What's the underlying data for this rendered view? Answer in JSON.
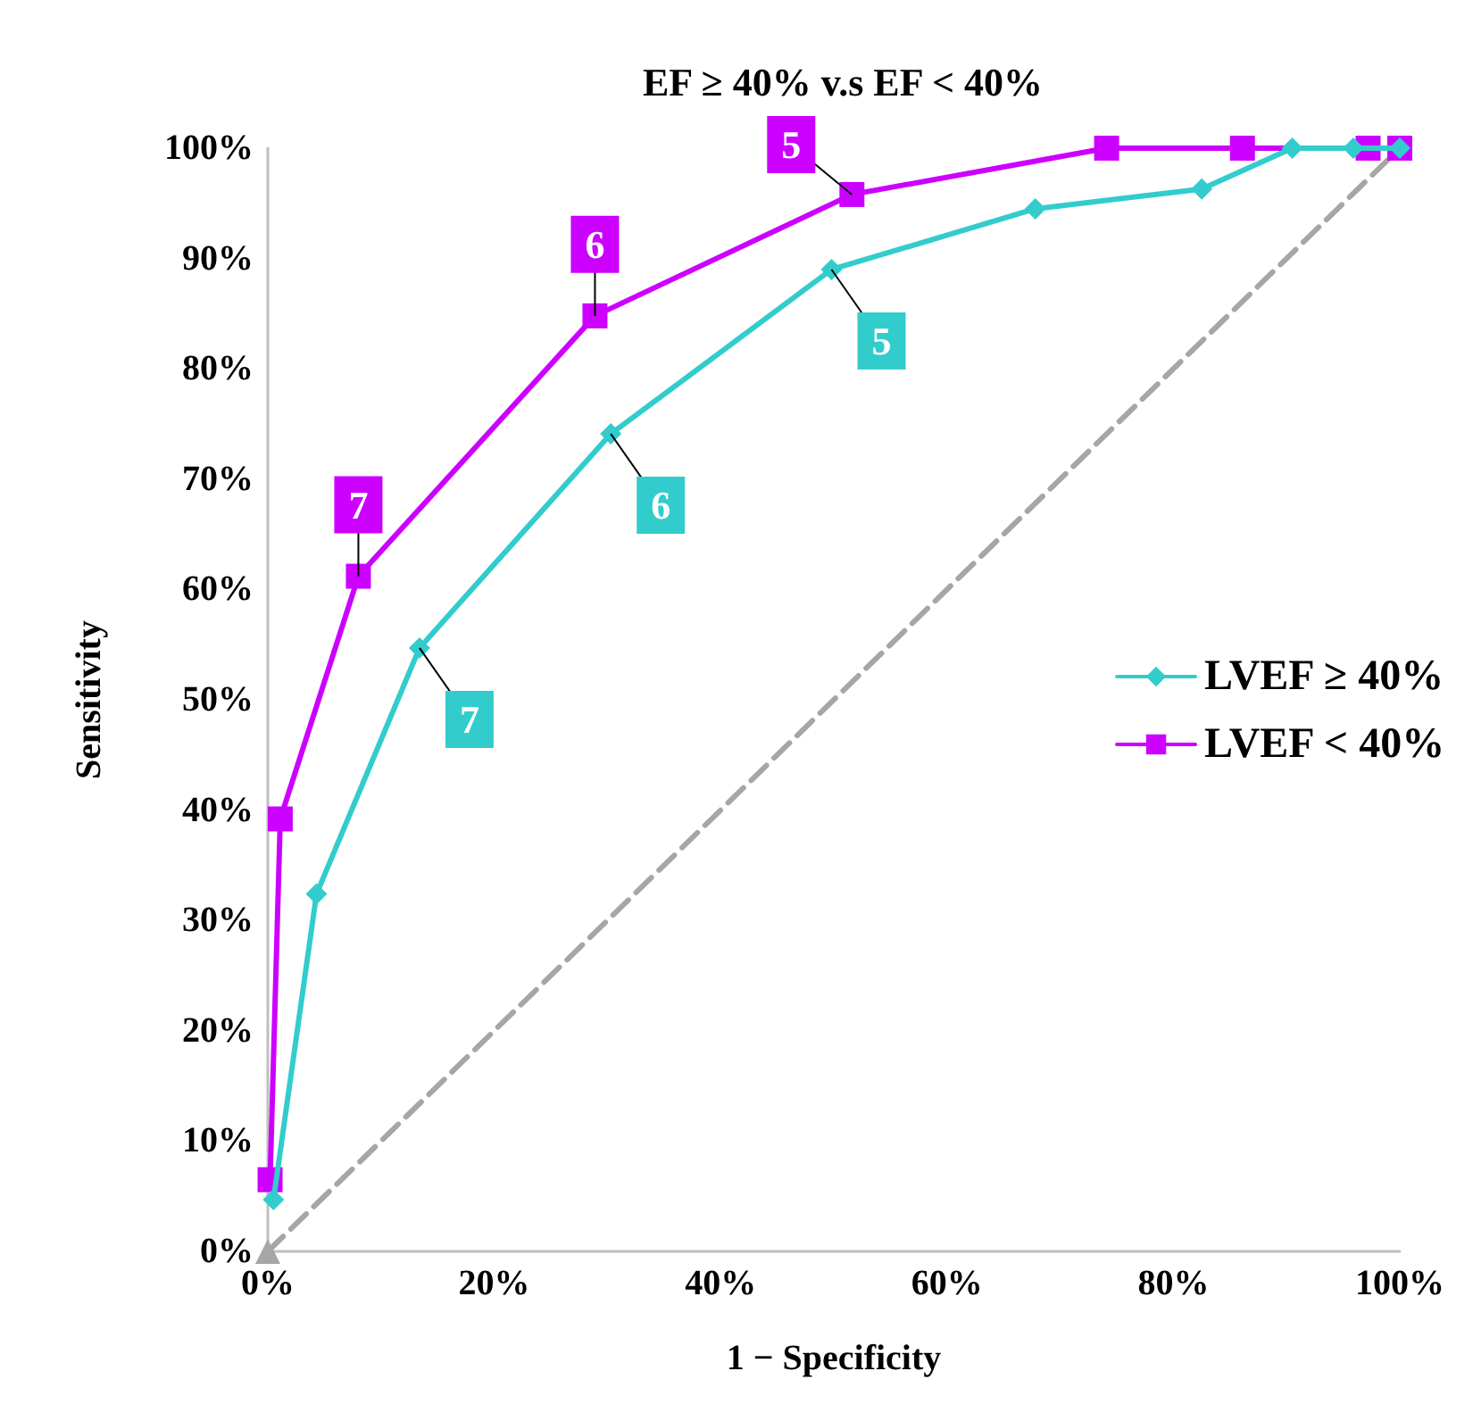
{
  "chart_data": {
    "type": "line",
    "title": "EF ≥ 40% v.s EF < 40%",
    "xlabel": "1 − Specificity",
    "ylabel": "Sensitivity",
    "xlim": [
      0,
      100
    ],
    "ylim": [
      0,
      100
    ],
    "xticks": [
      {
        "value": 0,
        "label": "0%"
      },
      {
        "value": 20,
        "label": "20%"
      },
      {
        "value": 40,
        "label": "40%"
      },
      {
        "value": 60,
        "label": "60%"
      },
      {
        "value": 80,
        "label": "80%"
      },
      {
        "value": 100,
        "label": "100%"
      }
    ],
    "yticks": [
      {
        "value": 0,
        "label": "0%"
      },
      {
        "value": 10,
        "label": "10%"
      },
      {
        "value": 20,
        "label": "20%"
      },
      {
        "value": 30,
        "label": "30%"
      },
      {
        "value": 40,
        "label": "40%"
      },
      {
        "value": 50,
        "label": "50%"
      },
      {
        "value": 60,
        "label": "60%"
      },
      {
        "value": 70,
        "label": "70%"
      },
      {
        "value": 80,
        "label": "80%"
      },
      {
        "value": 90,
        "label": "90%"
      },
      {
        "value": 100,
        "label": "100%"
      }
    ],
    "grid": false,
    "legend": "right",
    "annotations": [
      {
        "text": "7",
        "x": 13.4,
        "y": 54.7
      },
      {
        "text": "6",
        "x": 30.3,
        "y": 74.1
      },
      {
        "text": "5",
        "x": 49.8,
        "y": 89
      },
      {
        "text": "7",
        "x": 8,
        "y": 61.2
      },
      {
        "text": "6",
        "x": 28.9,
        "y": 84.8
      },
      {
        "text": "5",
        "x": 51.6,
        "y": 95.8
      }
    ],
    "series": [
      {
        "name": "LVEF ≥ 40%",
        "color": "#33cccc",
        "marker": "diamond",
        "x": [
          0.5,
          4.3,
          13.4,
          30.3,
          49.8,
          67.8,
          82.5,
          90.5,
          95.9,
          100
        ],
        "values": [
          4.7,
          32.4,
          54.7,
          74.1,
          89,
          94.5,
          96.3,
          100,
          100,
          100
        ]
      },
      {
        "name": "LVEF < 40%",
        "color": "#cc00ff",
        "marker": "square",
        "x": [
          0.2,
          1.1,
          8,
          28.9,
          51.6,
          74.1,
          86.1,
          97.2,
          100
        ],
        "values": [
          6.5,
          39.2,
          61.2,
          84.8,
          95.8,
          100,
          100,
          100,
          100
        ]
      },
      {
        "color": "#a6a6a6",
        "marker": "triangle",
        "line_style": "dashed",
        "x": [
          0,
          100
        ],
        "values": [
          0,
          100
        ]
      }
    ]
  }
}
